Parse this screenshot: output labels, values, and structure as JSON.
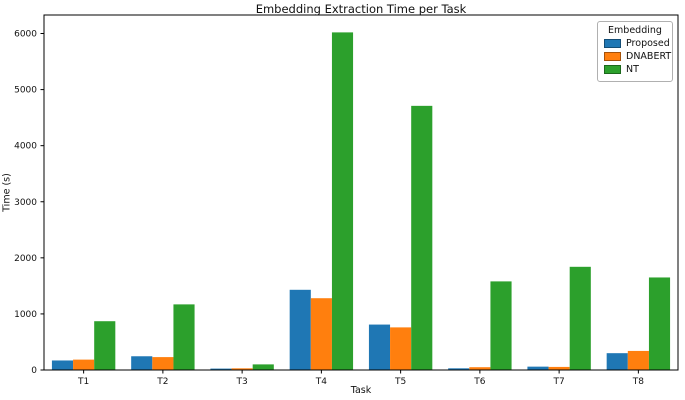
{
  "chart_data": {
    "type": "bar",
    "title": "Embedding Extraction Time per Task",
    "xlabel": "Task",
    "ylabel": "Time (s)",
    "categories": [
      "T1",
      "T2",
      "T3",
      "T4",
      "T5",
      "T6",
      "T7",
      "T8"
    ],
    "series": [
      {
        "name": "Proposed",
        "color": "#1f77b4",
        "values": [
          170,
          245,
          25,
          1430,
          810,
          30,
          60,
          300
        ]
      },
      {
        "name": "DNABERT",
        "color": "#ff7f0e",
        "values": [
          185,
          230,
          30,
          1280,
          760,
          50,
          55,
          340
        ]
      },
      {
        "name": "NT",
        "color": "#2ca02c",
        "values": [
          870,
          1170,
          100,
          6020,
          4710,
          1580,
          1840,
          1650
        ]
      }
    ],
    "ylim": [
      0,
      6330
    ],
    "yticks": [
      0,
      1000,
      2000,
      3000,
      4000,
      5000,
      6000
    ],
    "grid": false,
    "legend": {
      "title": "Embedding",
      "position": "upper right"
    },
    "axis_color": "#000000",
    "tick_label_color": "#111111"
  }
}
